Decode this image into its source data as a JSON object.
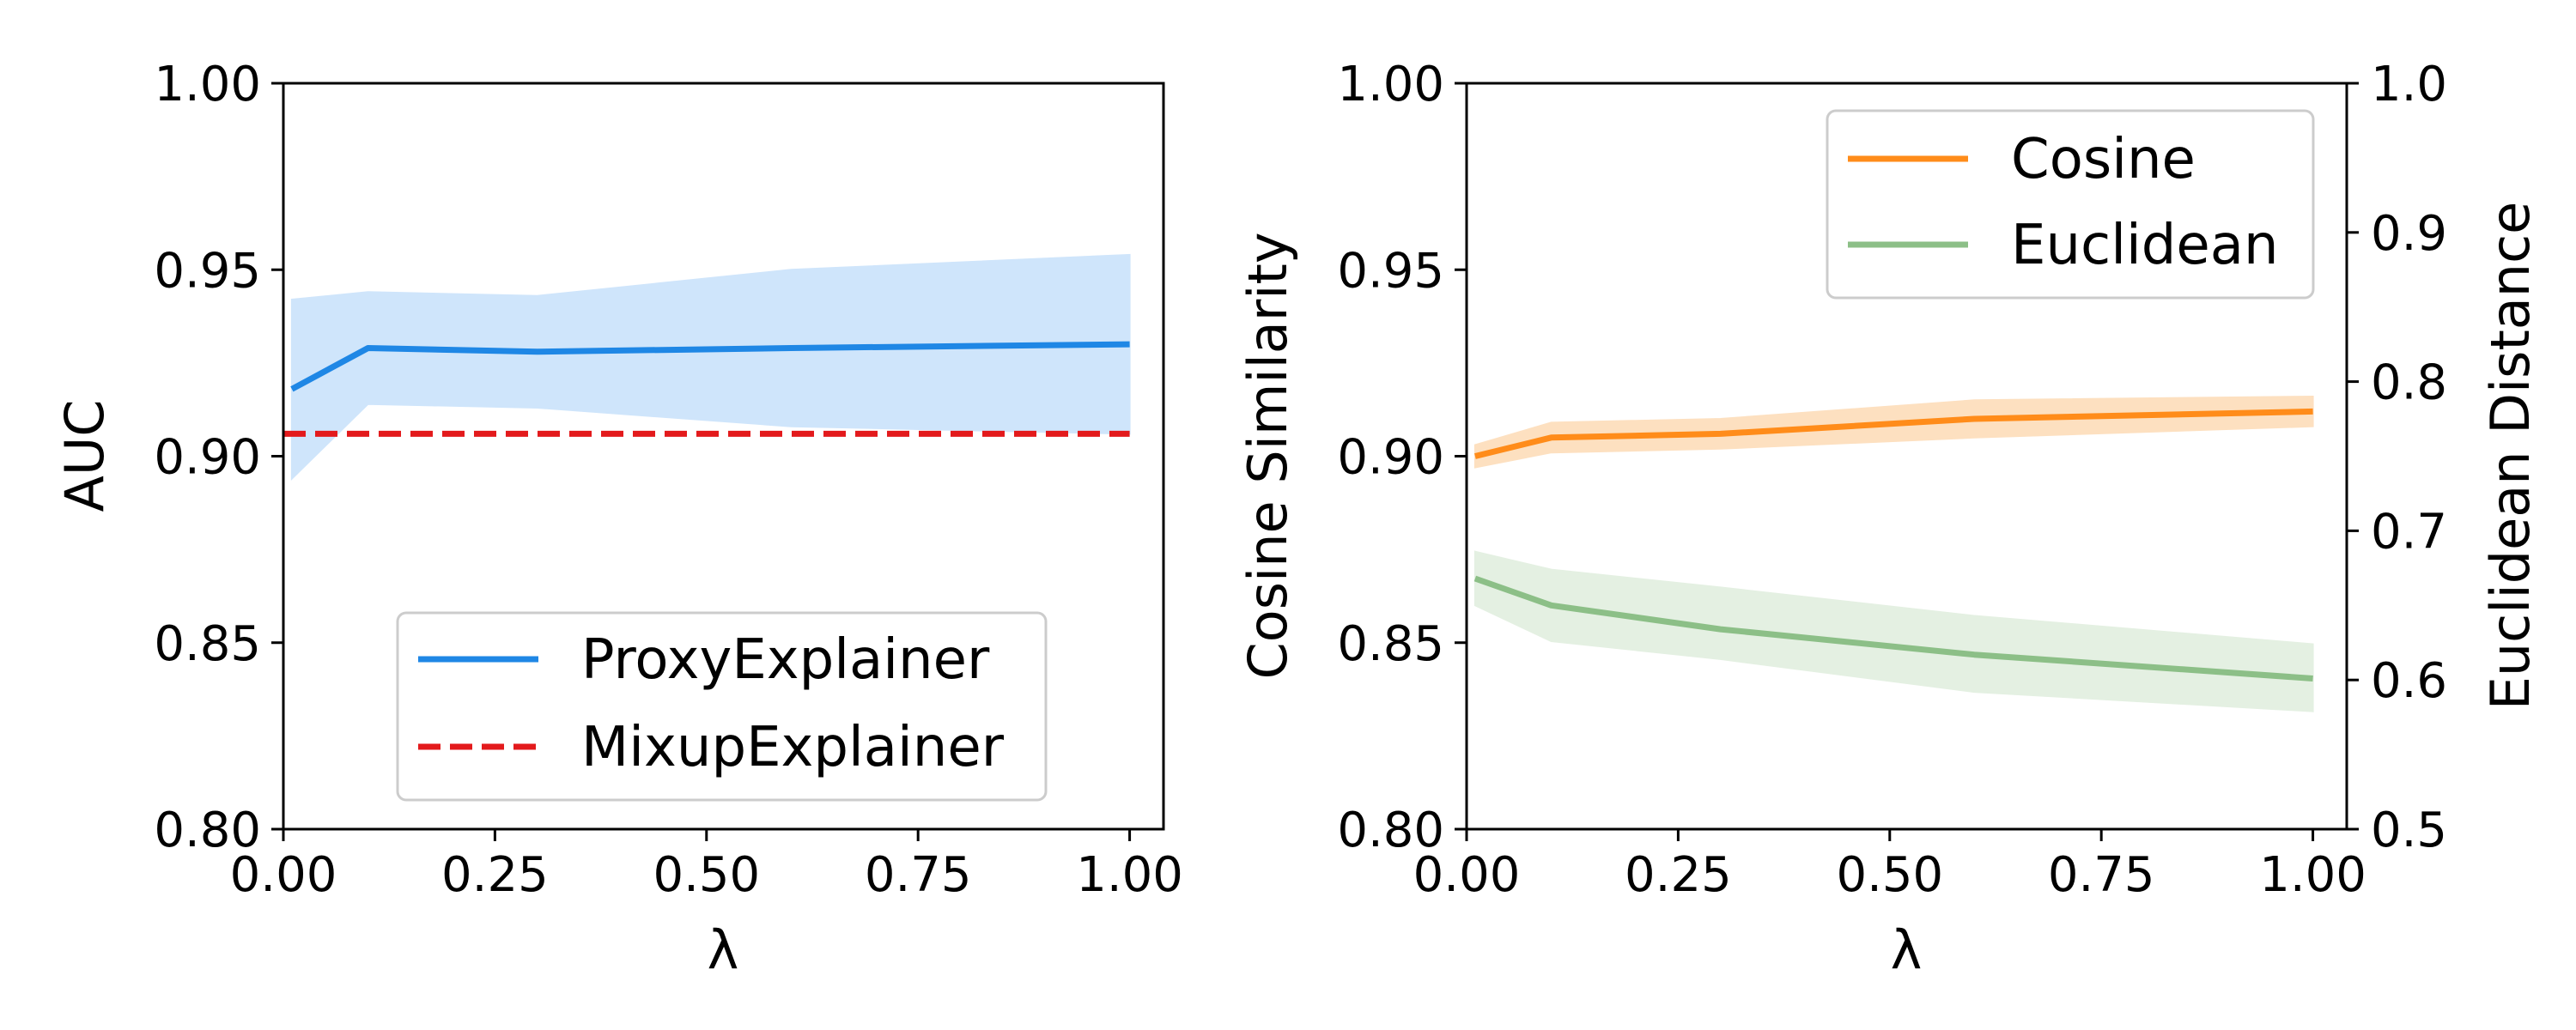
{
  "chart_data": [
    {
      "type": "line",
      "xlabel": "λ",
      "ylabel": "AUC",
      "xlim": [
        0.0,
        1.04
      ],
      "ylim": [
        0.8,
        1.0
      ],
      "xticks": [
        0.0,
        0.25,
        0.5,
        0.75,
        1.0
      ],
      "xtick_labels": [
        "0.00",
        "0.25",
        "0.50",
        "0.75",
        "1.00"
      ],
      "yticks": [
        0.8,
        0.85,
        0.9,
        0.95,
        1.0
      ],
      "ytick_labels": [
        "0.80",
        "0.85",
        "0.90",
        "0.95",
        "1.00"
      ],
      "legend_position": "lower-right",
      "series": [
        {
          "name": "ProxyExplainer",
          "color": "#1f87e5",
          "style": "solid",
          "x": [
            0.01,
            0.1,
            0.3,
            0.6,
            1.0
          ],
          "y": [
            0.918,
            0.929,
            0.928,
            0.929,
            0.93
          ],
          "band_lower": [
            0.894,
            0.914,
            0.913,
            0.908,
            0.906
          ],
          "band_upper": [
            0.942,
            0.944,
            0.943,
            0.95,
            0.954
          ],
          "band_color": "#cfe5fb"
        },
        {
          "name": "MixupExplainer",
          "color": "#e31a1c",
          "style": "dashed",
          "x": [
            0.0,
            1.0
          ],
          "y": [
            0.906,
            0.906
          ]
        }
      ]
    },
    {
      "type": "line",
      "xlabel": "λ",
      "ylabel": "Cosine Similarity",
      "ylabel_right": "Euclidean Distance",
      "xlim": [
        0.0,
        1.04
      ],
      "ylim": [
        0.8,
        1.0
      ],
      "ylim_right": [
        0.5,
        1.0
      ],
      "xticks": [
        0.0,
        0.25,
        0.5,
        0.75,
        1.0
      ],
      "xtick_labels": [
        "0.00",
        "0.25",
        "0.50",
        "0.75",
        "1.00"
      ],
      "yticks": [
        0.8,
        0.85,
        0.9,
        0.95,
        1.0
      ],
      "ytick_labels": [
        "0.80",
        "0.85",
        "0.90",
        "0.95",
        "1.00"
      ],
      "yticks_right": [
        0.5,
        0.6,
        0.7,
        0.8,
        0.9,
        1.0
      ],
      "ytick_labels_right": [
        "0.5",
        "0.6",
        "0.7",
        "0.8",
        "0.9",
        "1.0"
      ],
      "legend_position": "upper-right",
      "series": [
        {
          "name": "Cosine",
          "axis": "left",
          "color": "#ff8c1a",
          "style": "solid",
          "x": [
            0.01,
            0.1,
            0.3,
            0.6,
            1.0
          ],
          "y": [
            0.9,
            0.905,
            0.906,
            0.91,
            0.912
          ],
          "band_lower": [
            0.897,
            0.901,
            0.902,
            0.905,
            0.908
          ],
          "band_upper": [
            0.903,
            0.909,
            0.91,
            0.915,
            0.916
          ],
          "band_color": "#fde0c0"
        },
        {
          "name": "Euclidean",
          "axis": "right",
          "color": "#8cbf87",
          "style": "solid",
          "x": [
            0.01,
            0.1,
            0.3,
            0.6,
            1.0
          ],
          "y": [
            0.668,
            0.65,
            0.634,
            0.617,
            0.601
          ],
          "band_lower": [
            0.65,
            0.626,
            0.614,
            0.592,
            0.579
          ],
          "band_upper": [
            0.686,
            0.674,
            0.662,
            0.643,
            0.624
          ],
          "band_color": "#e4f0e2"
        }
      ]
    }
  ]
}
